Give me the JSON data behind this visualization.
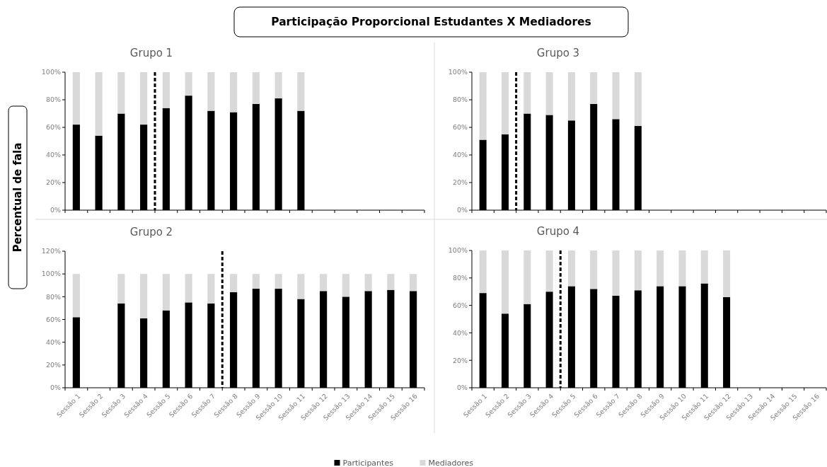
{
  "chart_data": [
    {
      "type": "bar",
      "stacked": true,
      "title": "Grupo 1",
      "ylabel": "Percentual de fala",
      "annotations": [
        "Participação Proporcional Estudantes X Mediadores"
      ],
      "legend": "bottom",
      "tick_labels": "y",
      "categories": [
        null,
        null,
        null,
        null,
        null,
        null,
        null,
        null,
        null,
        null,
        null,
        null,
        null,
        null,
        null,
        null
      ],
      "series": [
        {
          "name": "Participantes",
          "color": "#000000",
          "values": [
            62,
            54,
            70,
            62,
            74,
            83,
            72,
            71,
            77,
            81,
            72,
            null,
            null,
            null,
            null,
            null
          ]
        },
        {
          "name": "Mediadores",
          "color": "#d9d9d9",
          "values": [
            38,
            46,
            30,
            38,
            26,
            17,
            28,
            29,
            23,
            19,
            28,
            null,
            null,
            null,
            null,
            null
          ]
        }
      ],
      "ylim": [
        0,
        100
      ],
      "yticks": [
        {
          "value": 0,
          "label": "0%"
        },
        {
          "value": 20,
          "label": "20%"
        },
        {
          "value": 40,
          "label": "40%"
        },
        {
          "value": 60,
          "label": "60%"
        },
        {
          "value": 80,
          "label": "80%"
        },
        {
          "value": 100,
          "label": "100%"
        }
      ]
    },
    {
      "type": "bar",
      "stacked": true,
      "title": "Grupo 3",
      "tick_labels": "y",
      "categories": [
        null,
        null,
        null,
        null,
        null,
        null,
        null,
        null,
        null,
        null,
        null,
        null,
        null,
        null,
        null,
        null
      ],
      "series": [
        {
          "color": "#000000",
          "values": [
            51,
            55,
            70,
            69,
            65,
            77,
            66,
            61,
            null,
            null,
            null,
            null,
            null,
            null,
            null,
            null
          ]
        },
        {
          "color": "#d9d9d9",
          "values": [
            49,
            45,
            30,
            31,
            35,
            23,
            34,
            39,
            null,
            null,
            null,
            null,
            null,
            null,
            null,
            null
          ]
        }
      ],
      "ylim": [
        0,
        100
      ],
      "yticks": [
        {
          "value": 0,
          "label": "0%"
        },
        {
          "value": 20,
          "label": "20%"
        },
        {
          "value": 40,
          "label": "40%"
        },
        {
          "value": 60,
          "label": "60%"
        },
        {
          "value": 80,
          "label": "80%"
        },
        {
          "value": 100,
          "label": "100%"
        }
      ]
    },
    {
      "type": "bar",
      "stacked": true,
      "title": "Grupo 2",
      "categories": [
        "Sessão 1",
        "Sessão 2",
        "Sessão 3",
        "Sessão 4",
        "Sessão 5",
        "Sessão 6",
        "Sessão 7",
        "Sessão 8",
        "Sessão 9",
        "Sessão 10",
        "Sessão 11",
        "Sessão 12",
        "Sessão 13",
        "Sessão 14",
        "Sessão 15",
        "Sessão 16"
      ],
      "series": [
        {
          "color": "#000000",
          "values": [
            62,
            null,
            74,
            61,
            68,
            75,
            74,
            84,
            87,
            87,
            78,
            85,
            80,
            85,
            86,
            85
          ]
        },
        {
          "color": "#d9d9d9",
          "values": [
            38,
            null,
            26,
            39,
            32,
            25,
            26,
            16,
            13,
            13,
            22,
            15,
            20,
            15,
            14,
            15
          ]
        }
      ],
      "ylim": [
        0,
        120
      ],
      "yticks": [
        {
          "value": 0,
          "label": "0%"
        },
        {
          "value": 20,
          "label": "20%"
        },
        {
          "value": 40,
          "label": "40%"
        },
        {
          "value": 60,
          "label": "60%"
        },
        {
          "value": 80,
          "label": "80%"
        },
        {
          "value": 100,
          "label": "100%"
        },
        {
          "value": 120,
          "label": "120%"
        }
      ]
    },
    {
      "type": "bar",
      "stacked": true,
      "title": "Grupo 4",
      "categories": [
        "Sessão 1",
        "Sessão 2",
        "Sessão 3",
        "Sessão 4",
        "Sessão 5",
        "Sessão 6",
        "Sessão 7",
        "Sessão 8",
        "Sessão 9",
        "Sessão 10",
        "Sessão 11",
        "Sessão 12",
        "Sessão 13",
        "Sessão 14",
        "Sessão 15",
        "Sessão 16"
      ],
      "series": [
        {
          "color": "#000000",
          "values": [
            69,
            54,
            61,
            70,
            74,
            72,
            67,
            71,
            74,
            74,
            76,
            66,
            null,
            null,
            null,
            null
          ]
        },
        {
          "color": "#d9d9d9",
          "values": [
            31,
            46,
            39,
            30,
            26,
            28,
            33,
            29,
            26,
            26,
            24,
            34,
            null,
            null,
            null,
            null
          ]
        }
      ],
      "ylim": [
        0,
        100
      ],
      "yticks": [
        {
          "value": 0,
          "label": "0%"
        },
        {
          "value": 20,
          "label": "20%"
        },
        {
          "value": 40,
          "label": "40%"
        },
        {
          "value": 60,
          "label": "60%"
        },
        {
          "value": 80,
          "label": "80%"
        },
        {
          "value": 100,
          "label": "100%"
        }
      ]
    }
  ]
}
